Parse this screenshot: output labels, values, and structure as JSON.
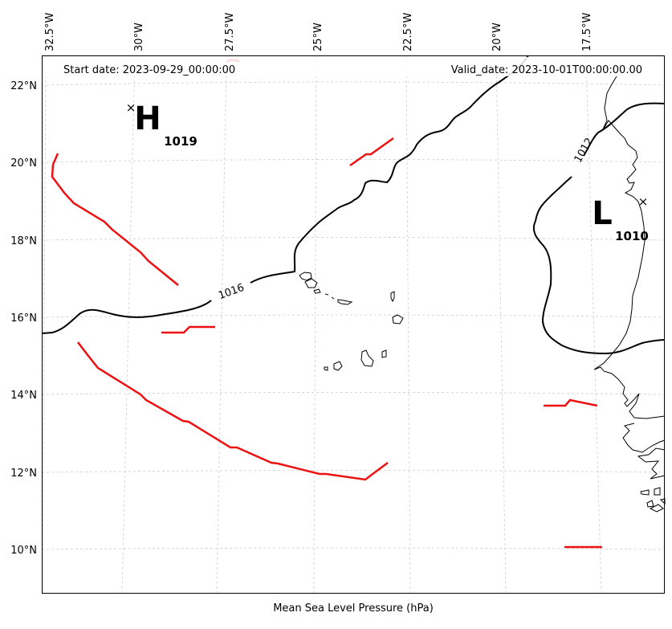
{
  "header": {
    "start_date": "Start date: 2023-09-29_00:00:00",
    "valid_date": "Valid_date: 2023-10-01T00:00:00.00"
  },
  "caption": "Mean Sea Level Pressure (hPa)",
  "lon_labels": [
    "32.5°W",
    "30°W",
    "27.5°W",
    "25°W",
    "22.5°W",
    "20°W",
    "17.5°W"
  ],
  "lat_labels": [
    "22°N",
    "20°N",
    "18°N",
    "16°N",
    "14°N",
    "12°N",
    "10°N"
  ],
  "pressure_centers": [
    {
      "type": "H",
      "value": "1019"
    },
    {
      "type": "L",
      "value": "1010"
    }
  ],
  "isobar_labels": [
    "1016",
    "1012"
  ],
  "colors": {
    "isobar": "#000000",
    "front": "#ee1111",
    "gridline": "#cccccc",
    "coastline": "#000000"
  }
}
